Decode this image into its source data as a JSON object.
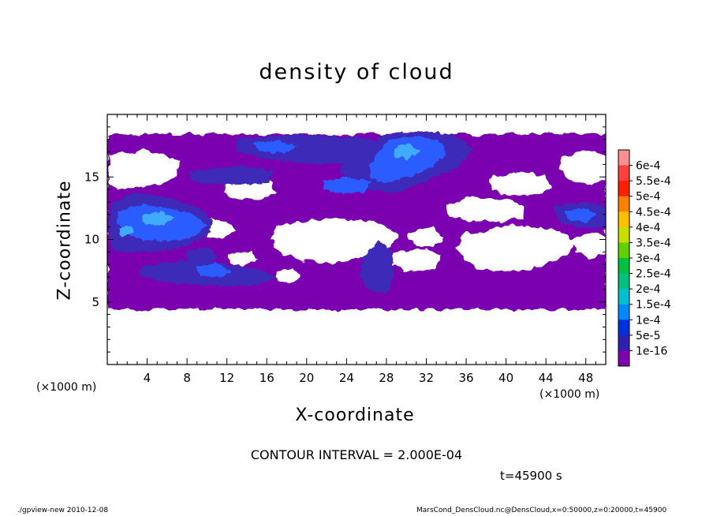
{
  "chart_data": {
    "type": "heatmap",
    "title": "density of cloud",
    "xlabel": "X-coordinate",
    "ylabel": "Z-coordinate",
    "x_unit": "(×1000 m)",
    "y_unit": "(×1000 m)",
    "xlim": [
      0,
      50
    ],
    "ylim": [
      0,
      20
    ],
    "x_ticks": [
      4,
      8,
      12,
      16,
      20,
      24,
      28,
      32,
      36,
      40,
      44,
      48
    ],
    "y_ticks": [
      5,
      10,
      15
    ],
    "grid": false,
    "colorbar": {
      "labels": [
        "6e-4",
        "5.5e-4",
        "5e-4",
        "4.5e-4",
        "4e-4",
        "3.5e-4",
        "3e-4",
        "2.5e-4",
        "2e-4",
        "1.5e-4",
        "1e-4",
        "5e-5",
        "1e-16"
      ],
      "colors": [
        "#ff9090",
        "#ff4040",
        "#ff2000",
        "#ff8000",
        "#ffc000",
        "#c8e000",
        "#60d000",
        "#00c040",
        "#00c080",
        "#00c0d0",
        "#0088ff",
        "#0030e0",
        "#3020b0",
        "#8000b0"
      ]
    },
    "cloud_layer_z_range": [
      4.5,
      18.5
    ],
    "contour_interval": "CONTOUR INTERVAL = 2.000E-04",
    "time": "t=45900 s"
  },
  "footer": {
    "left": "./gpview-new   2010-12-08",
    "right": "MarsCond_DensCloud.nc@DensCloud,x=0:50000,z=0:20000,t=45900"
  }
}
